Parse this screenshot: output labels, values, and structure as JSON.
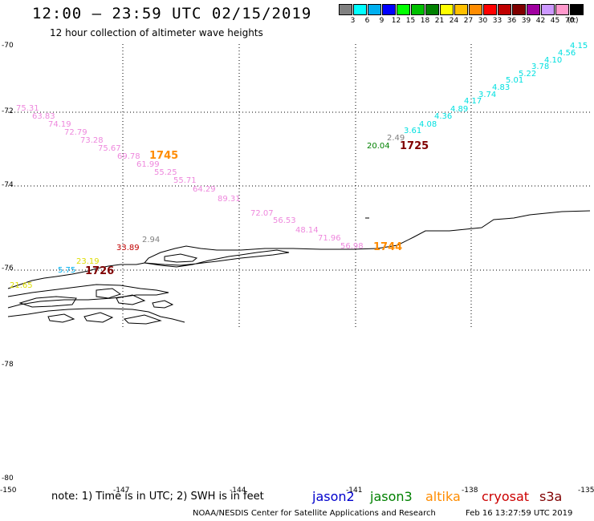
{
  "title": "12:00 – 23:59 UTC 02/15/2019",
  "subtitle": "12 hour collection of altimeter wave heights",
  "legend": {
    "values": [
      "3",
      "6",
      "9",
      "12",
      "15",
      "18",
      "21",
      "24",
      "27",
      "30",
      "33",
      "36",
      "39",
      "42",
      "45",
      "70"
    ],
    "colors": [
      "#808080",
      "#00ffff",
      "#00b0f0",
      "#0000ff",
      "#00ff00",
      "#00c000",
      "#008000",
      "#ffff00",
      "#ffc000",
      "#ff8c00",
      "#ff0000",
      "#c00000",
      "#800000",
      "#a000a0",
      "#cc99ff",
      "#ff99cc",
      "#000000"
    ],
    "unit": "(ft)"
  },
  "lat_labels": [
    "-70",
    "-72",
    "-74",
    "-76",
    "-78",
    "-80"
  ],
  "lon_labels": [
    "-150",
    "-147",
    "-144",
    "-141",
    "-138",
    "-135"
  ],
  "note": "note: 1) Time is in UTC; 2) SWH is in feet",
  "satellites": [
    {
      "name": "jason2",
      "color": "#0000cc"
    },
    {
      "name": "jason3",
      "color": "#008000"
    },
    {
      "name": "altika",
      "color": "#ff8c00"
    },
    {
      "name": "cryosat",
      "color": "#cc0000"
    },
    {
      "name": "s3a",
      "color": "#800000"
    }
  ],
  "footer": "NOAA/NESDIS Center for Satellite Applications and Research",
  "generated": "Feb 16 13:27:59 UTC 2019",
  "wave_labels": [
    {
      "text": "4.15",
      "color": "#00e0e0"
    },
    {
      "text": "4.56",
      "color": "#00e0e0"
    },
    {
      "text": "4.10",
      "color": "#00e0e0"
    },
    {
      "text": "3.78",
      "color": "#00e0e0"
    },
    {
      "text": "5.22",
      "color": "#00e0e0"
    },
    {
      "text": "5.01",
      "color": "#00e0e0"
    },
    {
      "text": "4.83",
      "color": "#00e0e0"
    },
    {
      "text": "3.74",
      "color": "#00e0e0"
    },
    {
      "text": "4.17",
      "color": "#00e0e0"
    },
    {
      "text": "4.89",
      "color": "#00e0e0"
    },
    {
      "text": "4.36",
      "color": "#00e0e0"
    },
    {
      "text": "4.08",
      "color": "#00e0e0"
    },
    {
      "text": "3.61",
      "color": "#00e0e0"
    },
    {
      "text": "2.49",
      "color": "#808080"
    },
    {
      "text": "20.04",
      "color": "#008000"
    },
    {
      "text": "75.31",
      "color": "#ee88dd"
    },
    {
      "text": "63.83",
      "color": "#ee88dd"
    },
    {
      "text": "74.19",
      "color": "#ee88dd"
    },
    {
      "text": "72.79",
      "color": "#ee88dd"
    },
    {
      "text": "73.28",
      "color": "#ee88dd"
    },
    {
      "text": "75.67",
      "color": "#ee88dd"
    },
    {
      "text": "69.78",
      "color": "#ee88dd"
    },
    {
      "text": "61.99",
      "color": "#ee88dd"
    },
    {
      "text": "55.25",
      "color": "#ee88dd"
    },
    {
      "text": "55.71",
      "color": "#ee88dd"
    },
    {
      "text": "64.29",
      "color": "#ee88dd"
    },
    {
      "text": "89.31",
      "color": "#ee88dd"
    },
    {
      "text": "72.07",
      "color": "#ee88dd"
    },
    {
      "text": "56.53",
      "color": "#ee88dd"
    },
    {
      "text": "48.14",
      "color": "#ee88dd"
    },
    {
      "text": "71.96",
      "color": "#ee88dd"
    },
    {
      "text": "56.98",
      "color": "#ee88dd"
    },
    {
      "text": "2.94",
      "color": "#808080"
    },
    {
      "text": "33.89",
      "color": "#c00000"
    },
    {
      "text": "23.19",
      "color": "#dddd00"
    },
    {
      "text": "5.75",
      "color": "#00b0f0"
    },
    {
      "text": "21.65",
      "color": "#dddd00"
    }
  ],
  "time_labels": [
    {
      "text": "1725",
      "color": "#800000"
    },
    {
      "text": "1745",
      "color": "#ff8c00"
    },
    {
      "text": "1744",
      "color": "#ff8c00"
    },
    {
      "text": "1726",
      "color": "#800000"
    }
  ]
}
